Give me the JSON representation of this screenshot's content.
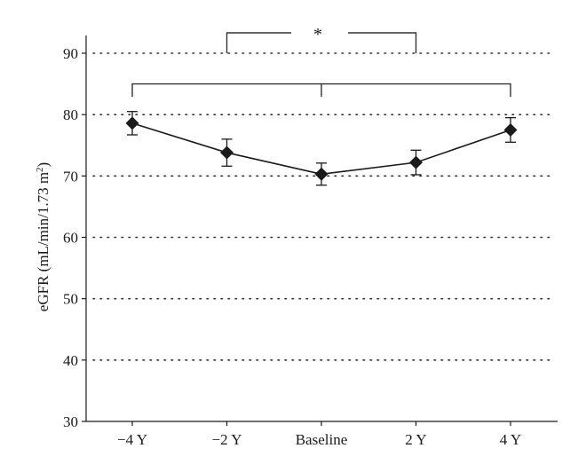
{
  "chart_data": {
    "type": "line",
    "categories": [
      "−4 Y",
      "−2 Y",
      "Baseline",
      "2 Y",
      "4 Y"
    ],
    "series": [
      {
        "values": [
          78.6,
          73.8,
          70.3,
          72.2,
          77.5
        ],
        "error": [
          1.9,
          2.2,
          1.8,
          2.0,
          2.0
        ]
      }
    ],
    "ylabel_main": "eGFR (mL/min/1.73 m",
    "ylabel_sup": "2",
    "ylabel_close": ")",
    "xlabel": "",
    "title": "",
    "ylim": [
      30,
      95
    ],
    "yticks": [
      30,
      40,
      50,
      60,
      70,
      80,
      90
    ],
    "grid": "horizontal dotted",
    "marker": "diamond",
    "color": "#1a1a1a",
    "annotations": {
      "significance_label": "*",
      "brackets": [
        {
          "from": "−2 Y",
          "to": "2 Y",
          "level": 90,
          "label": "*"
        },
        {
          "from": "−4 Y",
          "to": "4 Y",
          "level": 85,
          "center": "Baseline"
        }
      ]
    }
  }
}
